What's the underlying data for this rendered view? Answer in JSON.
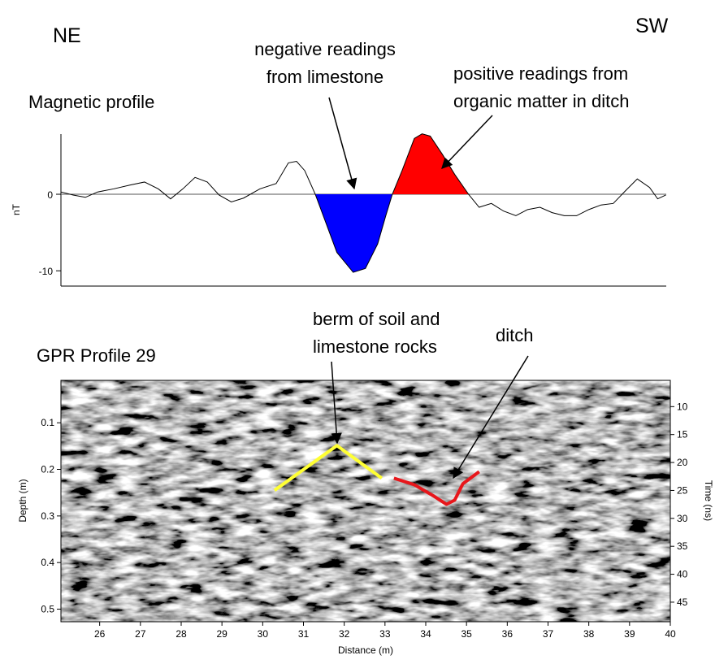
{
  "direction_labels": {
    "left": "NE",
    "right": "SW"
  },
  "chart_data": [
    {
      "type": "line",
      "title": "Magnetic profile",
      "ylabel": "nT",
      "xlim": [
        25.05,
        40
      ],
      "ylim": [
        -12,
        8.5
      ],
      "yticks": [
        -10,
        0
      ],
      "zero_line": true,
      "color": "#000000",
      "negative_fill": "#0000ff",
      "positive_fill": "#ff0000",
      "fill_xlim": [
        31.29,
        35.05
      ],
      "x": [
        25.05,
        25.35,
        25.65,
        25.95,
        26.34,
        26.74,
        27.1,
        27.44,
        27.74,
        28.04,
        28.34,
        28.64,
        28.93,
        29.23,
        29.53,
        29.93,
        30.33,
        30.63,
        30.83,
        31.03,
        31.29,
        31.52,
        31.82,
        32.22,
        32.52,
        32.82,
        33.02,
        33.18,
        33.42,
        33.72,
        33.91,
        34.11,
        34.41,
        34.71,
        35.05,
        35.31,
        35.61,
        35.91,
        36.21,
        36.5,
        36.8,
        37.1,
        37.4,
        37.7,
        38.0,
        38.3,
        38.6,
        38.89,
        39.19,
        39.49,
        39.69,
        39.89
      ],
      "values": [
        0.3,
        -0.1,
        -0.4,
        0.3,
        0.7,
        1.2,
        1.6,
        0.7,
        -0.6,
        0.7,
        2.2,
        1.6,
        -0.1,
        -1.0,
        -0.5,
        0.7,
        1.4,
        4.1,
        4.3,
        3.1,
        0,
        -3.3,
        -7.6,
        -10.2,
        -9.7,
        -6.5,
        -2.8,
        0,
        3.1,
        7.3,
        7.9,
        7.6,
        5.2,
        2.6,
        0,
        -1.7,
        -1.2,
        -2.2,
        -2.8,
        -2.0,
        -1.7,
        -2.4,
        -2.8,
        -2.8,
        -2.0,
        -1.4,
        -1.2,
        0.4,
        2.0,
        0.9,
        -0.6,
        -0.1
      ],
      "annotations": [
        {
          "text": [
            "negative readings",
            "from limestone"
          ]
        },
        {
          "text": [
            "positive readings from",
            "organic matter in ditch"
          ]
        }
      ]
    },
    {
      "type": "radargram",
      "title": "GPR Profile 29",
      "xlabel": "Distance (m)",
      "ylabel": "Depth (m)",
      "y2label": "Time (ns)",
      "xlim": [
        25.05,
        40
      ],
      "xticks": [
        26,
        27,
        28,
        29,
        30,
        31,
        32,
        33,
        34,
        35,
        36,
        37,
        38,
        39,
        40
      ],
      "ylim": [
        0.009,
        0.527
      ],
      "yticks": [
        0.1,
        0.2,
        0.3,
        0.4,
        0.5
      ],
      "y2lim": [
        5.3,
        48.5
      ],
      "y2ticks": [
        10,
        15,
        20,
        25,
        30,
        35,
        40,
        45
      ],
      "overlays": [
        {
          "color": "#ffff33",
          "x": [
            30.29,
            31.82,
            32.92
          ],
          "values": [
            0.245,
            0.149,
            0.219
          ]
        },
        {
          "color": "#e8161b",
          "x": [
            33.22,
            33.72,
            34.21,
            34.51,
            34.71,
            34.91,
            35.31
          ],
          "values": [
            0.219,
            0.233,
            0.258,
            0.275,
            0.266,
            0.231,
            0.205
          ]
        }
      ],
      "annotations": [
        {
          "text": [
            "berm of soil and",
            "limestone rocks"
          ]
        },
        {
          "text": [
            "ditch"
          ]
        }
      ]
    }
  ]
}
